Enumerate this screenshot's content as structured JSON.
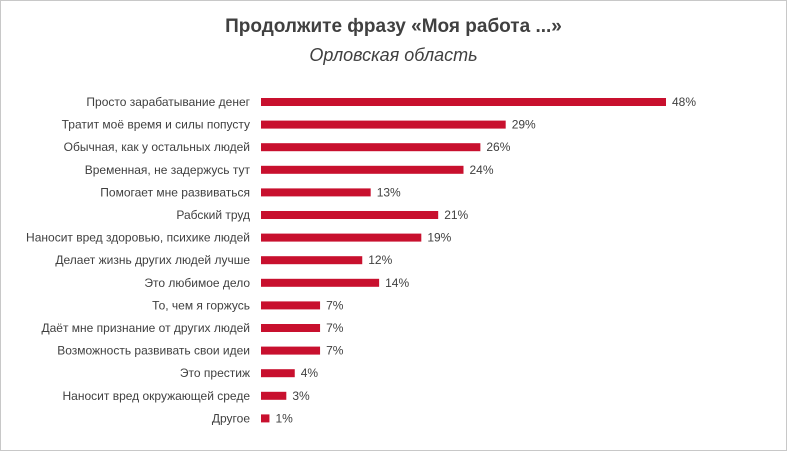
{
  "colors": {
    "bar": "#c8102e",
    "text": "#404040",
    "border": "#c8c8c8"
  },
  "chart_data": {
    "type": "bar",
    "orientation": "horizontal",
    "title": "Продолжите фразу «Моя работа ...»",
    "subtitle": "Орловская область",
    "xlim": [
      0,
      48
    ],
    "grid": false,
    "legend": "none",
    "categories": [
      "Просто зарабатывание денег",
      "Тратит моё время и силы попусту",
      "Обычная, как у остальных людей",
      "Временная, не задержусь тут",
      "Помогает мне развиваться",
      "Рабский труд",
      "Наносит вред здоровью, психике людей",
      "Делает жизнь других людей лучше",
      "Это любимое дело",
      "То, чем я горжусь",
      "Даёт мне признание от других людей",
      "Возможность развивать свои идеи",
      "Это престиж",
      "Наносит вред окружающей среде",
      "Другое"
    ],
    "values": [
      48,
      29,
      26,
      24,
      13,
      21,
      19,
      12,
      14,
      7,
      7,
      7,
      4,
      3,
      1
    ],
    "value_labels": [
      "48%",
      "29%",
      "26%",
      "24%",
      "13%",
      "21%",
      "19%",
      "12%",
      "14%",
      "7%",
      "7%",
      "7%",
      "4%",
      "3%",
      "1%"
    ]
  }
}
